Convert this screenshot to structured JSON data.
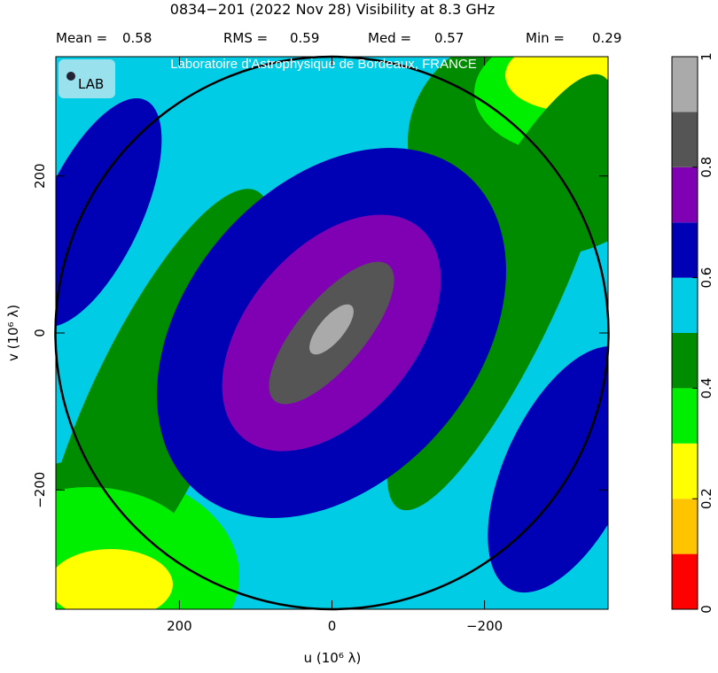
{
  "chart_data": {
    "type": "visibility-map",
    "title": "0834−201  (2022 Nov 28)   Visibility at  8.3 GHz",
    "stats": [
      {
        "label": "Mean =",
        "value": 0.58
      },
      {
        "label": "RMS =",
        "value": 0.59
      },
      {
        "label": "Med =",
        "value": 0.57
      },
      {
        "label": "Min =",
        "value": 0.29
      }
    ],
    "watermark": "Laboratoire d'Astrophysique de Bordeaux, FRANCE",
    "logo": "LAB",
    "x_label": "u  (10⁶ λ)",
    "y_label": "v  (10⁶ λ)",
    "xlim": [
      362,
      -362
    ],
    "ylim": [
      -352,
      352
    ],
    "xticks": [
      200,
      0,
      {
        "value": -200,
        "label": "−200"
      }
    ],
    "yticks": [
      {
        "value": -200,
        "label": "−200"
      },
      0,
      200
    ],
    "colorbar": {
      "lim": [
        0,
        1
      ],
      "ticks": [
        0,
        0.2,
        0.4,
        0.6,
        0.8,
        1
      ],
      "colors": [
        "#ff0000",
        "#ffc400",
        "#ffff00",
        "#00ee00",
        "#008c00",
        "#00cce6",
        "#0000b4",
        "#8000b4",
        "#555555",
        "#aaaaaa"
      ]
    }
  }
}
